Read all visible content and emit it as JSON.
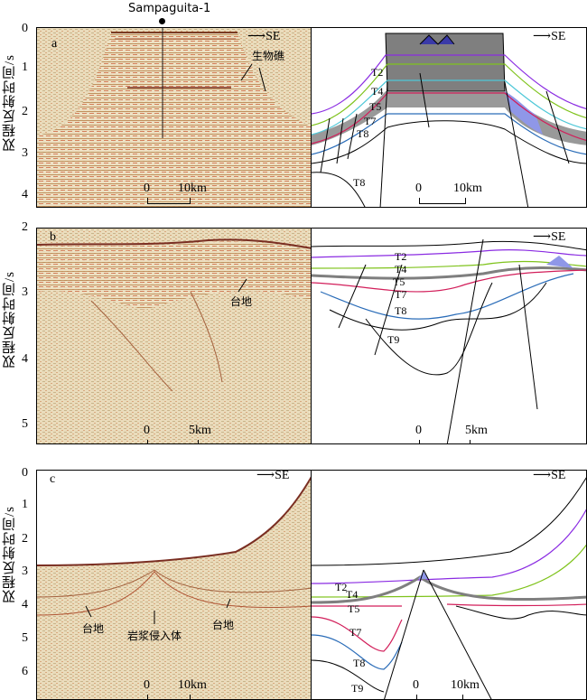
{
  "y_axis_label": "双程反射时间/s",
  "direction_label": "SE",
  "well_name": "Sampaguita-1",
  "panels": {
    "a": {
      "label": "a",
      "ticks": [
        "0",
        "1",
        "2",
        "3",
        "4"
      ],
      "scale_left": {
        "zero": "0",
        "dist": "10km"
      },
      "scale_right": {
        "zero": "0",
        "dist": "10km"
      },
      "annotation": "生物礁",
      "horizons": [
        "T2",
        "T4",
        "T5",
        "T7",
        "T8",
        "T8"
      ]
    },
    "b": {
      "label": "b",
      "ticks": [
        "2",
        "3",
        "4",
        "5"
      ],
      "scale_left": {
        "zero": "0",
        "dist": "5km"
      },
      "scale_right": {
        "zero": "0",
        "dist": "5km"
      },
      "annotation": "台地",
      "horizons": [
        "T2",
        "T4",
        "T5",
        "T7",
        "T8",
        "T9"
      ]
    },
    "c": {
      "label": "c",
      "ticks": [
        "0",
        "1",
        "2",
        "3",
        "4",
        "5",
        "6"
      ],
      "scale_left": {
        "zero": "0",
        "dist": "10km"
      },
      "scale_right": {
        "zero": "0",
        "dist": "10km"
      },
      "annotation_left": "台地",
      "annotation_mid": "岩浆侵入体",
      "annotation_right": "台地",
      "horizons": [
        "T2",
        "T4",
        "T5",
        "T7",
        "T8",
        "T9"
      ]
    }
  },
  "colors": {
    "purple": "#8a2be2",
    "green": "#7fc31c",
    "cyan": "#4fc8d8",
    "red": "#d21e5a",
    "blue": "#2a6cb8",
    "gray_fill": "#7f7f7f",
    "lilac_fill": "#8f97e8"
  }
}
